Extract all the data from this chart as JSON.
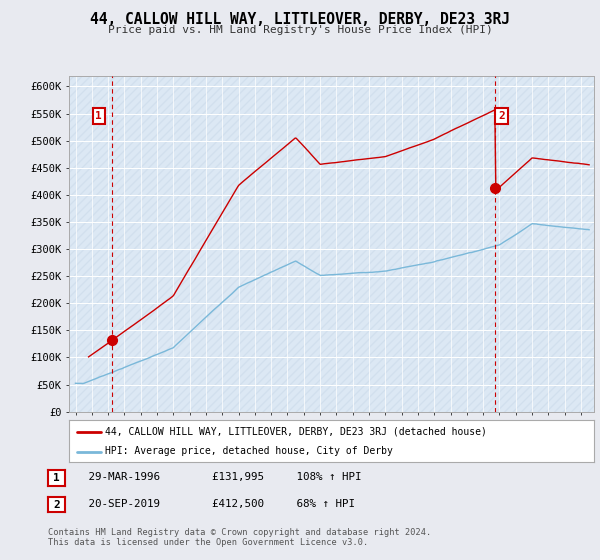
{
  "title": "44, CALLOW HILL WAY, LITTLEOVER, DERBY, DE23 3RJ",
  "subtitle": "Price paid vs. HM Land Registry's House Price Index (HPI)",
  "ylabel_ticks": [
    "£0",
    "£50K",
    "£100K",
    "£150K",
    "£200K",
    "£250K",
    "£300K",
    "£350K",
    "£400K",
    "£450K",
    "£500K",
    "£550K",
    "£600K"
  ],
  "ytick_values": [
    0,
    50000,
    100000,
    150000,
    200000,
    250000,
    300000,
    350000,
    400000,
    450000,
    500000,
    550000,
    600000
  ],
  "ylim": [
    0,
    620000
  ],
  "xlim_start": 1993.6,
  "xlim_end": 2025.8,
  "sale1_date": 1996.23,
  "sale1_price": 131995,
  "sale1_label": "1",
  "sale2_date": 2019.72,
  "sale2_price": 412500,
  "sale2_label": "2",
  "hpi_color": "#7ab8d9",
  "sale_color": "#cc0000",
  "background_color": "#e8eaf0",
  "plot_bg_color": "#dce8f4",
  "hatch_color": "#c8d8e8",
  "legend_label_red": "44, CALLOW HILL WAY, LITTLEOVER, DERBY, DE23 3RJ (detached house)",
  "legend_label_blue": "HPI: Average price, detached house, City of Derby",
  "table_row1": [
    "1",
    "29-MAR-1996",
    "£131,995",
    "108% ↑ HPI"
  ],
  "table_row2": [
    "2",
    "20-SEP-2019",
    "£412,500",
    "68% ↑ HPI"
  ],
  "footnote1": "Contains HM Land Registry data © Crown copyright and database right 2024.",
  "footnote2": "This data is licensed under the Open Government Licence v3.0."
}
